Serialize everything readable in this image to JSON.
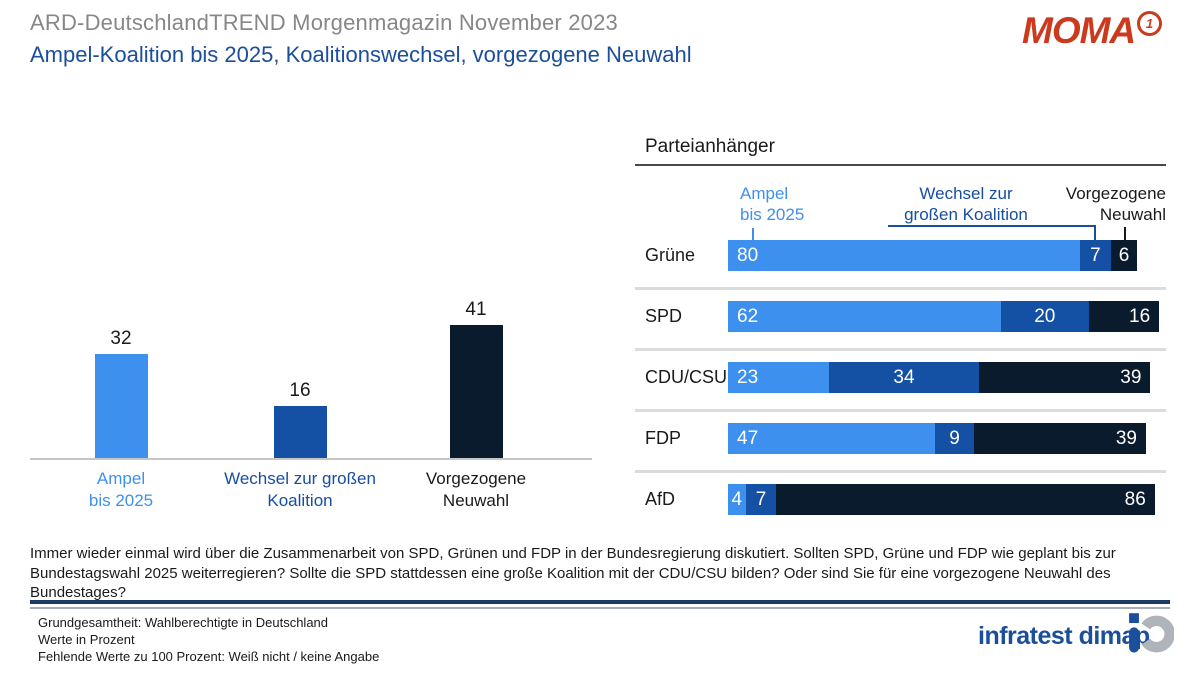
{
  "header": {
    "title": "ARD-DeutschlandTREND Morgenmagazin November 2023",
    "subtitle": "Ampel-Koalition bis 2025, Koalitionswechsel, vorgezogene Neuwahl",
    "moma": {
      "text": "MOMA",
      "badge": "1"
    }
  },
  "chart_data": [
    {
      "type": "bar",
      "orientation": "vertical",
      "categories": [
        [
          "Ampel",
          "bis 2025"
        ],
        [
          "Wechsel zur großen",
          "Koalition"
        ],
        [
          "Vorgezogene",
          "Neuwahl"
        ]
      ],
      "values": [
        32,
        16,
        41
      ],
      "bar_colors": [
        "#3E90EE",
        "#1450A4",
        "#0B1B2E"
      ],
      "label_colors": [
        "#3E90EE",
        "#174EA0",
        "#1A1A1A"
      ],
      "ylim": [
        0,
        50
      ],
      "unit": "Prozent",
      "value_labels": true,
      "grid": false
    },
    {
      "type": "bar",
      "orientation": "horizontal-stacked",
      "title": "Parteianhänger",
      "categories": [
        "Grüne",
        "SPD",
        "CDU/CSU",
        "FDP",
        "AfD"
      ],
      "series": [
        {
          "name": "Ampel bis 2025",
          "name_lines": [
            "Ampel",
            "bis 2025"
          ],
          "color": "#3E90EE",
          "values": [
            80,
            62,
            23,
            47,
            4
          ]
        },
        {
          "name": "Wechsel zur großen Koalition",
          "name_lines": [
            "Wechsel zur",
            "großen Koalition"
          ],
          "color": "#1450A4",
          "values": [
            7,
            20,
            34,
            9,
            7
          ]
        },
        {
          "name": "Vorgezogene Neuwahl",
          "name_lines": [
            "Vorgezogene",
            "Neuwahl"
          ],
          "color": "#0B1B2E",
          "values": [
            6,
            16,
            39,
            39,
            86
          ]
        }
      ],
      "xlim": [
        0,
        100
      ],
      "unit": "Prozent",
      "legend_position": "top"
    }
  ],
  "question": "Immer wieder einmal wird über die Zusammenarbeit von SPD, Grünen und FDP in der Bundesregierung diskutiert. Sollten SPD, Grüne und FDP wie geplant bis zur Bundestagswahl 2025 weiterregieren? Sollte die SPD stattdessen eine große Koalition mit der CDU/CSU bilden? Oder sind Sie für eine vorgezogene Neuwahl des Bundestages?",
  "footnotes": [
    "Grundgesamtheit: Wahlberechtigte in Deutschland",
    "Werte in Prozent",
    "Fehlende Werte zu 100 Prozent: Weiß nicht / keine Angabe"
  ],
  "brand": {
    "name": "infratest dimap"
  },
  "colors": {
    "light_blue": "#3E90EE",
    "mid_blue": "#1450A4",
    "navy": "#0B1B2E",
    "title_gray": "#878787",
    "accent_blue": "#1B4E9B",
    "moma_red": "#CC3A1E",
    "separator_gray": "#DCDCDC"
  }
}
